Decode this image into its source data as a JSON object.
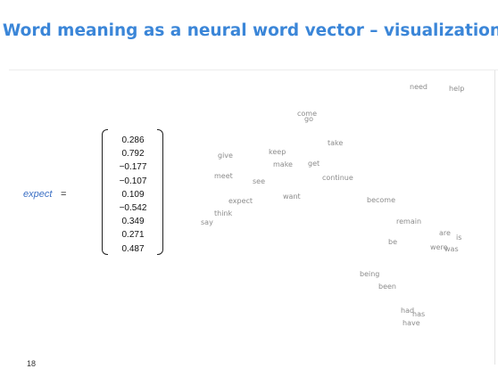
{
  "title": "Word meaning as a neural word vector – visualization",
  "vector": {
    "word": "expect",
    "equals": "=",
    "values": [
      "0.286",
      "0.792",
      "−0.177",
      "−0.107",
      "0.109",
      "−0.542",
      "0.349",
      "0.271",
      "0.487"
    ]
  },
  "embedding_words": [
    "need",
    "help",
    "come",
    "go",
    "take",
    "keep",
    "give",
    "make",
    "get",
    "meet",
    "continue",
    "see",
    "expect",
    "want",
    "become",
    "think",
    "say",
    "remain",
    "are",
    "is",
    "be",
    "were",
    "was",
    "being",
    "been",
    "had",
    "has",
    "have"
  ],
  "page_number": "18"
}
